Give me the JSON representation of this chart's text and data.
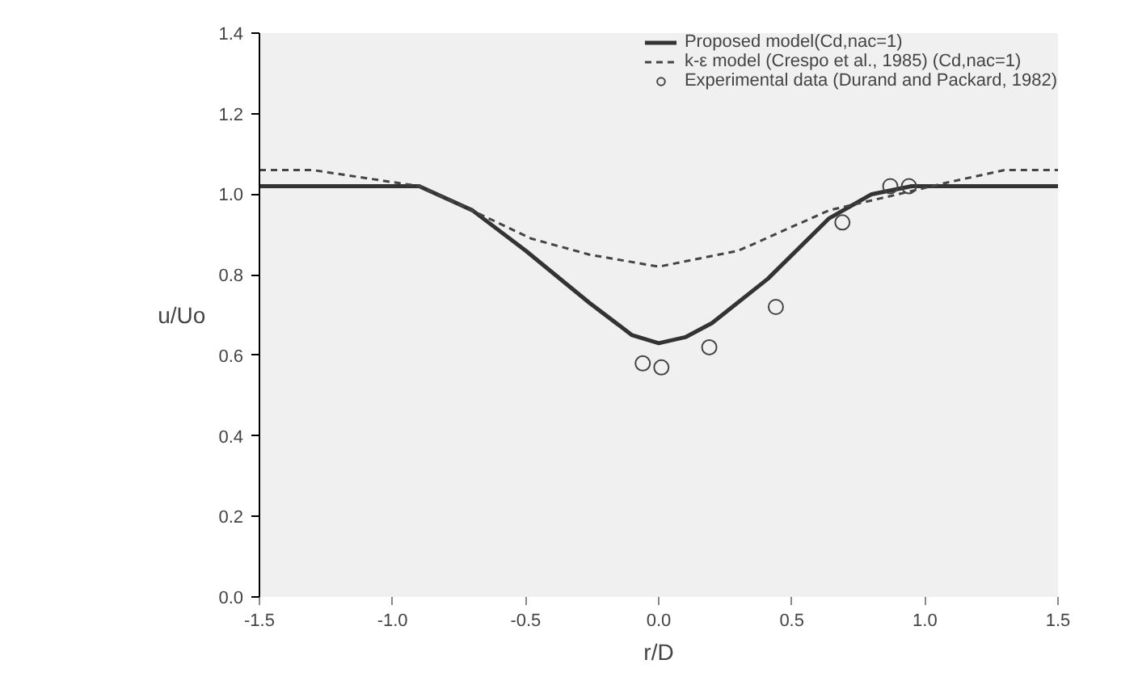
{
  "chart_data": {
    "type": "line",
    "xlabel": "r/D",
    "ylabel": "u/Uo",
    "xlim": [
      -1.5,
      1.5
    ],
    "ylim": [
      0.0,
      1.4
    ],
    "xticks": [
      {
        "value": -1.5,
        "label": "-1.5"
      },
      {
        "value": -1.0,
        "label": "-1.0"
      },
      {
        "value": -0.5,
        "label": "-0.5"
      },
      {
        "value": 0.0,
        "label": "0.0"
      },
      {
        "value": 0.5,
        "label": "0.5"
      },
      {
        "value": 1.0,
        "label": "1.0"
      },
      {
        "value": 1.5,
        "label": "1.5"
      }
    ],
    "yticks": [
      {
        "value": 0.0,
        "label": "0.0"
      },
      {
        "value": 0.2,
        "label": "0.2"
      },
      {
        "value": 0.4,
        "label": "0.4"
      },
      {
        "value": 0.6,
        "label": "0.6"
      },
      {
        "value": 0.8,
        "label": "0.8"
      },
      {
        "value": 1.0,
        "label": "1.0"
      },
      {
        "value": 1.2,
        "label": "1.2"
      },
      {
        "value": 1.4,
        "label": "1.4"
      }
    ],
    "grid": false,
    "legend": "top right",
    "series": [
      {
        "name": "Proposed model(Cd,nac=1)",
        "color": "#333333",
        "line_style": "solid",
        "x": [
          -1.5,
          -0.9,
          -0.7,
          -0.5,
          -0.26,
          -0.1,
          0.0,
          0.1,
          0.2,
          0.41,
          0.64,
          0.8,
          0.95,
          1.5
        ],
        "values": [
          1.02,
          1.02,
          0.96,
          0.86,
          0.73,
          0.65,
          0.63,
          0.645,
          0.68,
          0.79,
          0.94,
          1.0,
          1.02,
          1.02
        ]
      },
      {
        "name": "k-ε model (Crespo et al., 1985) (Cd,nac=1)",
        "color": "#444444",
        "line_style": "dashed",
        "x": [
          -1.5,
          -1.3,
          -0.9,
          -0.67,
          -0.48,
          -0.26,
          0.0,
          0.3,
          0.64,
          0.9,
          1.09,
          1.3,
          1.5
        ],
        "values": [
          1.06,
          1.06,
          1.02,
          0.95,
          0.89,
          0.85,
          0.82,
          0.86,
          0.96,
          1.0,
          1.03,
          1.06,
          1.06
        ]
      },
      {
        "name": "Experimental data (Durand and Packard, 1982)",
        "type": "scatter",
        "marker": "circle",
        "color": "#444444",
        "x": [
          -0.06,
          0.01,
          0.19,
          0.44,
          0.69,
          0.87,
          0.94
        ],
        "values": [
          0.58,
          0.57,
          0.62,
          0.72,
          0.93,
          1.02,
          1.02
        ]
      }
    ]
  }
}
